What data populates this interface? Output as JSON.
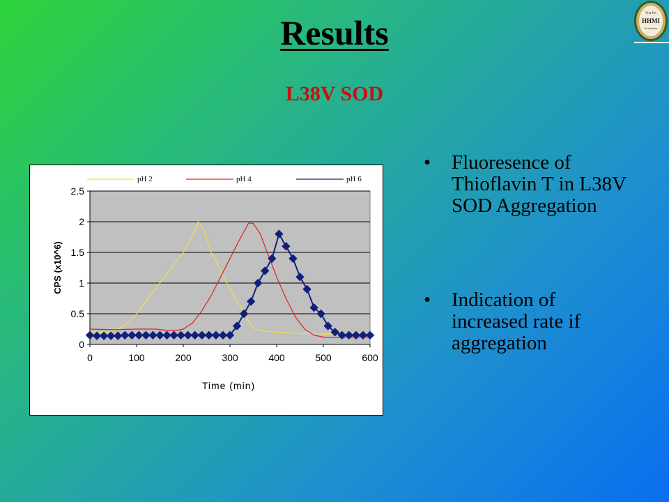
{
  "slide": {
    "title": "Results",
    "subtitle": "L38V SOD",
    "logo_text_top": "Vita Per",
    "logo_text_main": "HHMI",
    "logo_text_bottom": "Scientiam"
  },
  "bullets": [
    {
      "symbol": "•",
      "text": "Fluoresence of Thioflavin T in L38V SOD Aggregation"
    },
    {
      "symbol": "•",
      "text": "Indication of increased rate if aggregation"
    }
  ],
  "colors": {
    "plot_bg": "#c0c0c0",
    "ph2": "#f0e040",
    "ph4": "#e02020",
    "ph6": "#10207a",
    "subtitle": "#c81010"
  },
  "chart_data": {
    "type": "line",
    "title": "",
    "xlabel": "Time (min)",
    "ylabel": "CPS (x10^6)",
    "xlim": [
      0,
      600
    ],
    "ylim": [
      0,
      2.5
    ],
    "xticks": [
      0,
      100,
      200,
      300,
      400,
      500,
      600
    ],
    "yticks": [
      0,
      0.5,
      1,
      1.5,
      2,
      2.5
    ],
    "ytick_labels": [
      "0",
      "0.5",
      "1",
      "1.5",
      "2",
      "2.5"
    ],
    "grid": "horizontal",
    "legend_position": "top",
    "series": [
      {
        "name": "pH 2",
        "color": "#f0e040",
        "marker": "none",
        "x": [
          0,
          40,
          60,
          80,
          100,
          120,
          140,
          160,
          180,
          200,
          215,
          225,
          232,
          245,
          260,
          280,
          300,
          320,
          335,
          345,
          355,
          370,
          400,
          450,
          500,
          550,
          600
        ],
        "y": [
          0.2,
          0.2,
          0.25,
          0.35,
          0.5,
          0.7,
          0.9,
          1.1,
          1.3,
          1.5,
          1.7,
          1.85,
          2.0,
          1.85,
          1.5,
          1.2,
          0.9,
          0.65,
          0.45,
          0.3,
          0.25,
          0.22,
          0.2,
          0.18,
          0.17,
          0.16,
          0.15
        ]
      },
      {
        "name": "pH 4",
        "color": "#e02020",
        "marker": "none",
        "x": [
          0,
          50,
          100,
          140,
          180,
          200,
          220,
          240,
          260,
          280,
          300,
          320,
          340,
          350,
          365,
          380,
          400,
          420,
          440,
          460,
          480,
          500,
          520,
          550,
          600
        ],
        "y": [
          0.25,
          0.24,
          0.25,
          0.25,
          0.22,
          0.25,
          0.35,
          0.55,
          0.8,
          1.1,
          1.4,
          1.7,
          1.98,
          1.97,
          1.8,
          1.5,
          1.1,
          0.75,
          0.45,
          0.25,
          0.15,
          0.12,
          0.11,
          0.12,
          0.12
        ]
      },
      {
        "name": "pH 6",
        "color": "#10207a",
        "marker": "diamond",
        "x": [
          0,
          15,
          30,
          45,
          60,
          75,
          90,
          105,
          120,
          135,
          150,
          165,
          180,
          195,
          210,
          225,
          240,
          255,
          270,
          285,
          300,
          315,
          330,
          345,
          360,
          375,
          390,
          405,
          420,
          435,
          450,
          465,
          480,
          495,
          510,
          525,
          540,
          555,
          570,
          585,
          600
        ],
        "y": [
          0.15,
          0.14,
          0.14,
          0.14,
          0.14,
          0.15,
          0.15,
          0.15,
          0.15,
          0.15,
          0.15,
          0.15,
          0.15,
          0.15,
          0.15,
          0.15,
          0.15,
          0.15,
          0.15,
          0.15,
          0.15,
          0.3,
          0.5,
          0.7,
          1.0,
          1.2,
          1.4,
          1.8,
          1.6,
          1.4,
          1.1,
          0.9,
          0.6,
          0.5,
          0.3,
          0.2,
          0.15,
          0.15,
          0.15,
          0.15,
          0.15
        ]
      }
    ]
  }
}
